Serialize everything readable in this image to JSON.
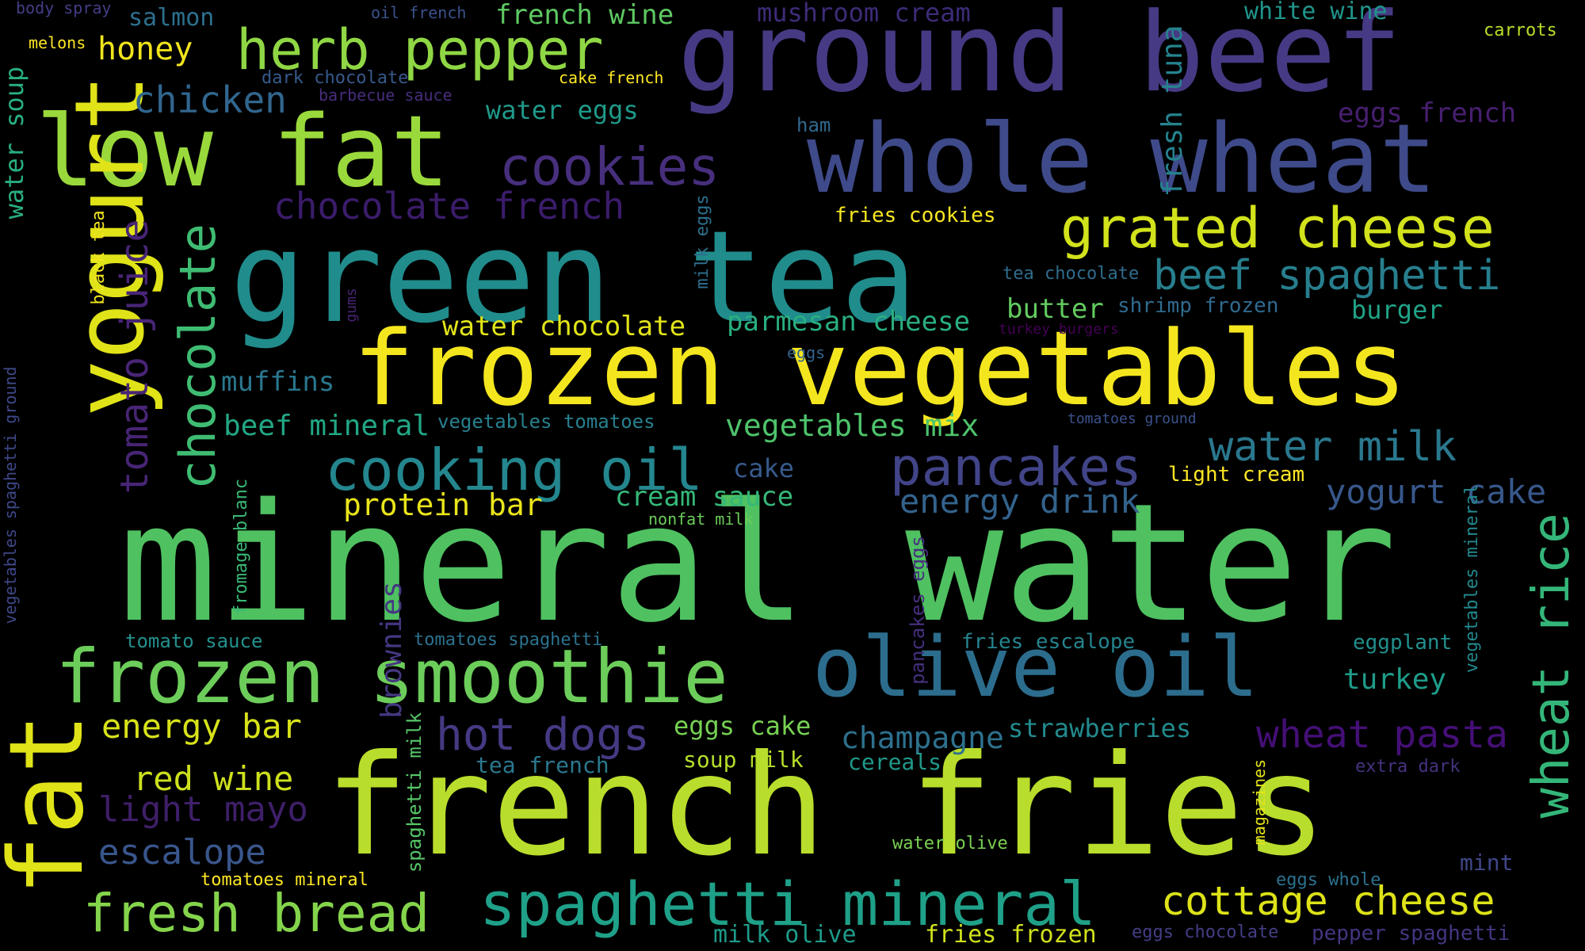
{
  "words": [
    {
      "text": "mineral water",
      "color": "#4fc161"
    },
    {
      "text": "french fries",
      "color": "#b9dd2c"
    },
    {
      "text": "green tea",
      "color": "#218c8c"
    },
    {
      "text": "frozen vegetables",
      "color": "#f4e61e"
    },
    {
      "text": "ground beef",
      "color": "#463a84"
    },
    {
      "text": "whole wheat",
      "color": "#3e4a89"
    },
    {
      "text": "low fat",
      "color": "#9ad93c"
    },
    {
      "text": "yogurt",
      "color": "#dfe318"
    },
    {
      "text": "fat",
      "color": "#dfe318"
    },
    {
      "text": "olive oil",
      "color": "#2c6d8e"
    },
    {
      "text": "frozen smoothie",
      "color": "#6ccd5a"
    },
    {
      "text": "spaghetti mineral",
      "color": "#1fa088"
    },
    {
      "text": "herb pepper",
      "color": "#8fd744"
    },
    {
      "text": "grated cheese",
      "color": "#d2e21b"
    },
    {
      "text": "cooking oil",
      "color": "#24868e"
    },
    {
      "text": "pancakes",
      "color": "#414487"
    },
    {
      "text": "cookies",
      "color": "#472f7d"
    },
    {
      "text": "chocolate",
      "color": "#3fbc73"
    },
    {
      "text": "fresh bread",
      "color": "#84d44b"
    },
    {
      "text": "cottage cheese",
      "color": "#dde318"
    },
    {
      "text": "wheat rice",
      "color": "#34b679"
    },
    {
      "text": "beef spaghetti",
      "color": "#277f8e"
    },
    {
      "text": "water milk",
      "color": "#2a788e"
    },
    {
      "text": "hot dogs",
      "color": "#443a83"
    },
    {
      "text": "wheat pasta",
      "color": "#440f76"
    },
    {
      "text": "chicken",
      "color": "#31668e"
    },
    {
      "text": "chocolate french",
      "color": "#3b1c6b"
    },
    {
      "text": "tomato juice",
      "color": "#482576"
    },
    {
      "text": "fresh tuna",
      "color": "#25838e"
    },
    {
      "text": "energy drink",
      "color": "#33638d"
    },
    {
      "text": "yogurt cake",
      "color": "#38588c"
    },
    {
      "text": "escalope",
      "color": "#39568c"
    },
    {
      "text": "light mayo",
      "color": "#3f1f69"
    },
    {
      "text": "red wine",
      "color": "#cde11d"
    },
    {
      "text": "energy bar",
      "color": "#d8e219"
    },
    {
      "text": "champagne",
      "color": "#2d718e"
    },
    {
      "text": "protein bar",
      "color": "#eae51a"
    },
    {
      "text": "water chocolate",
      "color": "#e2e418"
    },
    {
      "text": "parmesan cheese",
      "color": "#29af7f"
    },
    {
      "text": "vegetables mix",
      "color": "#4ec36b"
    },
    {
      "text": "beef mineral",
      "color": "#22a785"
    },
    {
      "text": "butter",
      "color": "#63cb5f"
    },
    {
      "text": "burger",
      "color": "#20a386"
    },
    {
      "text": "muffins",
      "color": "#2a778e"
    },
    {
      "text": "cream sauce",
      "color": "#35b779"
    },
    {
      "text": "turkey",
      "color": "#1e9c89"
    },
    {
      "text": "strawberries",
      "color": "#238a8d"
    },
    {
      "text": "eggs cake",
      "color": "#77d153"
    },
    {
      "text": "french wine",
      "color": "#5ec962"
    },
    {
      "text": "honey",
      "color": "#f1e51d"
    },
    {
      "text": "salmon",
      "color": "#2d708e"
    },
    {
      "text": "mushroom cream",
      "color": "#3e2b78"
    },
    {
      "text": "white wine",
      "color": "#1f958b"
    },
    {
      "text": "water eggs",
      "color": "#1f9a8a"
    },
    {
      "text": "eggs french",
      "color": "#481f70"
    },
    {
      "text": "water soup",
      "color": "#29af7f"
    },
    {
      "text": "brownies",
      "color": "#453781"
    },
    {
      "text": "cake",
      "color": "#375b8d"
    },
    {
      "text": "soup milk",
      "color": "#b5de2b"
    },
    {
      "text": "cereals",
      "color": "#1f998a"
    },
    {
      "text": "tea french",
      "color": "#2a788e"
    },
    {
      "text": "milk olive",
      "color": "#1e9b8a"
    },
    {
      "text": "fries frozen",
      "color": "#d0e11c"
    },
    {
      "text": "light cream",
      "color": "#fde725"
    },
    {
      "text": "fries cookies",
      "color": "#f8e621"
    },
    {
      "text": "shrimp frozen",
      "color": "#306a8e"
    },
    {
      "text": "tea chocolate",
      "color": "#2f6c8e"
    },
    {
      "text": "tomato sauce",
      "color": "#22908d"
    },
    {
      "text": "tomatoes spaghetti",
      "color": "#2c728e"
    },
    {
      "text": "fries escalope",
      "color": "#25848e"
    },
    {
      "text": "eggplant",
      "color": "#21908d"
    },
    {
      "text": "vegetables tomatoes",
      "color": "#27808e"
    },
    {
      "text": "fromage blanc",
      "color": "#3aba76"
    },
    {
      "text": "spaghetti milk",
      "color": "#56c667"
    },
    {
      "text": "pancakes eggs",
      "color": "#462f7e"
    },
    {
      "text": "milk eggs",
      "color": "#2d708e"
    },
    {
      "text": "black tea",
      "color": "#f1e51d"
    },
    {
      "text": "vegetables spaghetti ground",
      "color": "#3f4889"
    },
    {
      "text": "vegetables mineral",
      "color": "#23898e"
    },
    {
      "text": "magazines",
      "color": "#e5e419"
    },
    {
      "text": "mint",
      "color": "#3f4788"
    },
    {
      "text": "extra dark",
      "color": "#46327e"
    },
    {
      "text": "eggs whole",
      "color": "#2c718e"
    },
    {
      "text": "eggs chocolate",
      "color": "#433e85"
    },
    {
      "text": "pepper spaghetti",
      "color": "#453581"
    },
    {
      "text": "water olive",
      "color": "#7ad151"
    },
    {
      "text": "tomatoes mineral",
      "color": "#fde725"
    },
    {
      "text": "nonfat milk",
      "color": "#6ccd5a"
    },
    {
      "text": "ham",
      "color": "#31688e"
    },
    {
      "text": "eggs",
      "color": "#33638d"
    },
    {
      "text": "gums",
      "color": "#482475"
    },
    {
      "text": "turkey burgers",
      "color": "#440154"
    },
    {
      "text": "tomatoes ground",
      "color": "#3b528b"
    },
    {
      "text": "dark chocolate",
      "color": "#375a8c"
    },
    {
      "text": "barbecue sauce",
      "color": "#472d7b"
    },
    {
      "text": "oil french",
      "color": "#3b528b"
    },
    {
      "text": "cake french",
      "color": "#fde725"
    },
    {
      "text": "body spray",
      "color": "#433e85"
    },
    {
      "text": "melons",
      "color": "#fde725"
    },
    {
      "text": "carrots",
      "color": "#b8de29"
    }
  ]
}
